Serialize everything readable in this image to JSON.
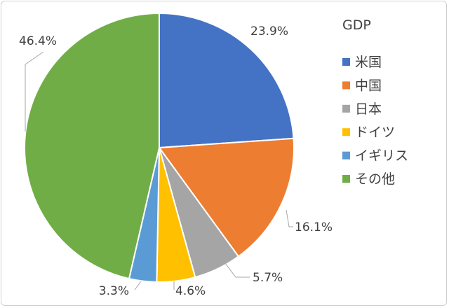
{
  "chart_data": {
    "type": "pie",
    "title": "GDP",
    "legend_position": "right",
    "start_angle_deg": 0,
    "direction": "clockwise",
    "slices": [
      {
        "label": "米国",
        "value": 23.9,
        "value_label": "23.9%",
        "color": "#4472C4"
      },
      {
        "label": "中国",
        "value": 16.1,
        "value_label": "16.1%",
        "color": "#ED7D31"
      },
      {
        "label": "日本",
        "value": 5.7,
        "value_label": "5.7%",
        "color": "#A5A5A5"
      },
      {
        "label": "ドイツ",
        "value": 4.6,
        "value_label": "4.6%",
        "color": "#FFC000"
      },
      {
        "label": "イギリス",
        "value": 3.3,
        "value_label": "3.3%",
        "color": "#5B9BD5"
      },
      {
        "label": "その他",
        "value": 46.4,
        "value_label": "46.4%",
        "color": "#70AD47"
      }
    ]
  }
}
